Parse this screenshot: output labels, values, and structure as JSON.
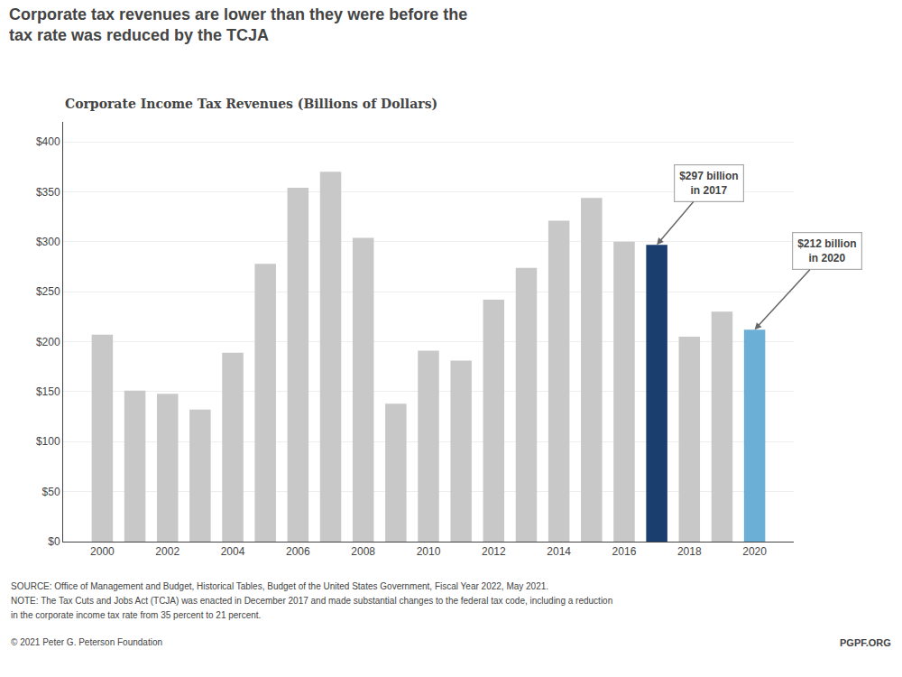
{
  "chart_data": {
    "type": "bar",
    "title": "Corporate tax revenues are lower than they were before the\ntax rate was reduced by the TCJA",
    "subtitle": "Corporate Income Tax Revenues (Billions of Dollars)",
    "x": [
      2000,
      2001,
      2002,
      2003,
      2004,
      2005,
      2006,
      2007,
      2008,
      2009,
      2010,
      2011,
      2012,
      2013,
      2014,
      2015,
      2016,
      2017,
      2018,
      2019,
      2020
    ],
    "values": [
      207,
      151,
      148,
      132,
      189,
      278,
      354,
      370,
      304,
      138,
      191,
      181,
      242,
      274,
      321,
      344,
      300,
      297,
      205,
      230,
      212
    ],
    "colors": [
      "#c8c8c8",
      "#c8c8c8",
      "#c8c8c8",
      "#c8c8c8",
      "#c8c8c8",
      "#c8c8c8",
      "#c8c8c8",
      "#c8c8c8",
      "#c8c8c8",
      "#c8c8c8",
      "#c8c8c8",
      "#c8c8c8",
      "#c8c8c8",
      "#c8c8c8",
      "#c8c8c8",
      "#c8c8c8",
      "#c8c8c8",
      "#1a3f6f",
      "#c8c8c8",
      "#c8c8c8",
      "#6baed6"
    ],
    "xlim": [
      1998.8,
      2021.2
    ],
    "xticks": [
      2000,
      2002,
      2004,
      2006,
      2008,
      2010,
      2012,
      2014,
      2016,
      2018,
      2020
    ],
    "ylim": [
      0,
      420
    ],
    "yticks": [
      {
        "value": 0,
        "label": "$0"
      },
      {
        "value": 50,
        "label": "$50"
      },
      {
        "value": 100,
        "label": "$100"
      },
      {
        "value": 150,
        "label": "$150"
      },
      {
        "value": 200,
        "label": "$200"
      },
      {
        "value": 250,
        "label": "$250"
      },
      {
        "value": 300,
        "label": "$300"
      },
      {
        "value": 350,
        "label": "$350"
      },
      {
        "value": 400,
        "label": "$400"
      }
    ],
    "grid": true,
    "annotations": [
      {
        "text": "$297 billion\nin 2017",
        "x": 2017,
        "y": 297
      },
      {
        "text": "$212 billion\nin 2020",
        "x": 2020,
        "y": 212
      }
    ],
    "footer": [
      "SOURCE: Office of Management and Budget, Historical Tables, Budget of the United States Government, Fiscal Year 2022, May 2021.",
      "NOTE: The Tax Cuts and Jobs Act (TCJA) was enacted in December 2017 and made substantial changes to the federal tax code, including a reduction",
      "in the corporate income tax rate from 35 percent to 21 percent.",
      "© 2021 Peter G. Peterson Foundation"
    ],
    "footer_right": "PGPF.ORG"
  }
}
